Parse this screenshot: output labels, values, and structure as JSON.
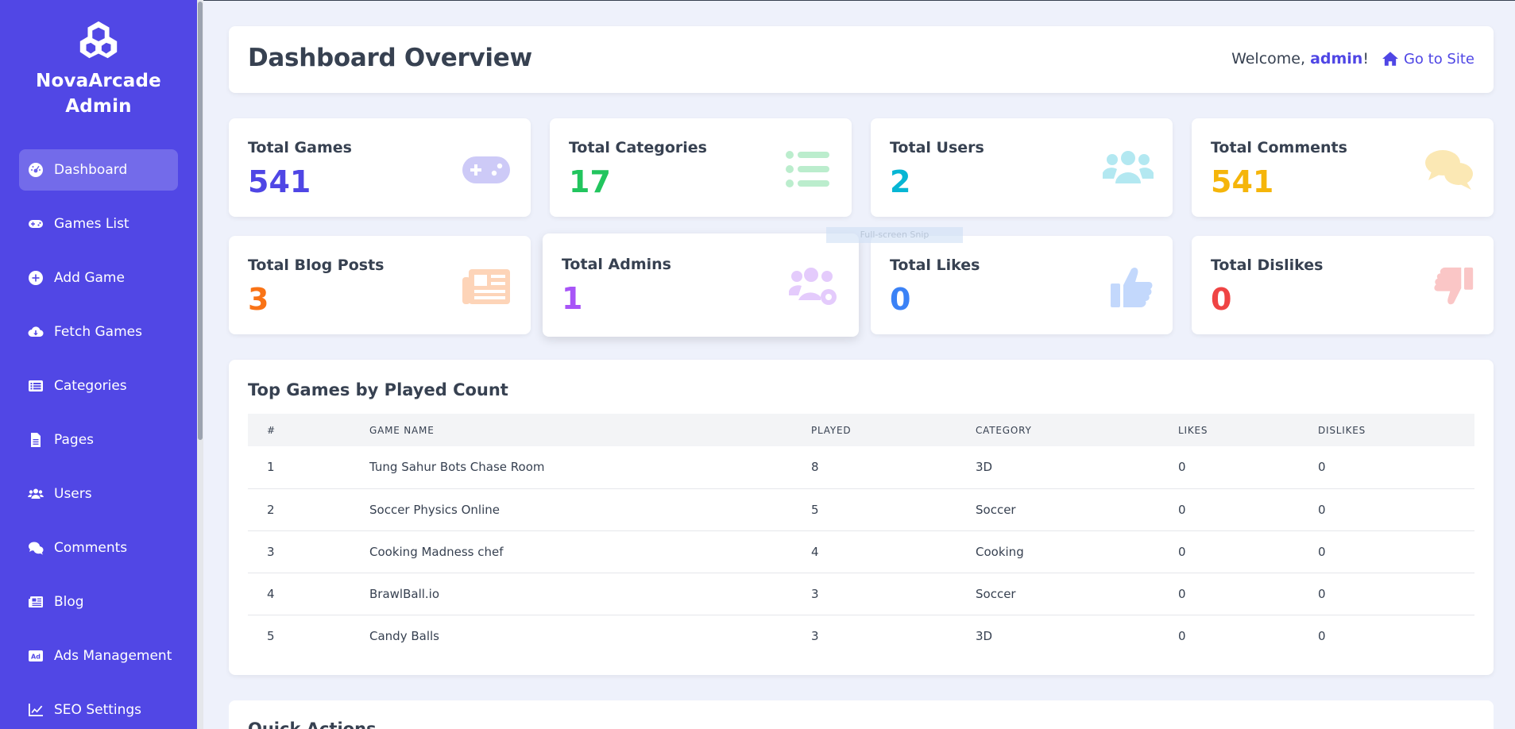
{
  "sidebar": {
    "brand_line1": "NovaArcade",
    "brand_line2": "Admin",
    "items": [
      {
        "label": "Dashboard",
        "icon": "gauge-icon",
        "active": true
      },
      {
        "label": "Games List",
        "icon": "gamepad-icon"
      },
      {
        "label": "Add Game",
        "icon": "plus-circle-icon"
      },
      {
        "label": "Fetch Games",
        "icon": "cloud-download-icon"
      },
      {
        "label": "Categories",
        "icon": "list-icon"
      },
      {
        "label": "Pages",
        "icon": "file-icon"
      },
      {
        "label": "Users",
        "icon": "users-icon"
      },
      {
        "label": "Comments",
        "icon": "comments-icon"
      },
      {
        "label": "Blog",
        "icon": "newspaper-icon"
      },
      {
        "label": "Ads Management",
        "icon": "ad-icon"
      },
      {
        "label": "SEO Settings",
        "icon": "chart-line-icon"
      }
    ]
  },
  "header": {
    "title": "Dashboard Overview",
    "welcome_prefix": "Welcome, ",
    "admin_name": "admin",
    "welcome_suffix": "!",
    "goto_label": "Go to Site"
  },
  "stats": [
    {
      "label": "Total Games",
      "value": "541",
      "color": "#4f46e5",
      "icon": "gamepad-icon"
    },
    {
      "label": "Total Categories",
      "value": "17",
      "color": "#22c55e",
      "icon": "list-icon"
    },
    {
      "label": "Total Users",
      "value": "2",
      "color": "#06b6d4",
      "icon": "users-icon"
    },
    {
      "label": "Total Comments",
      "value": "541",
      "color": "#f5b50a",
      "icon": "comments-icon"
    },
    {
      "label": "Total Blog Posts",
      "value": "3",
      "color": "#f97316",
      "icon": "newspaper-icon"
    },
    {
      "label": "Total Admins",
      "value": "1",
      "color": "#a855f7",
      "icon": "users-cog-icon"
    },
    {
      "label": "Total Likes",
      "value": "0",
      "color": "#3b82f6",
      "icon": "thumbs-up-icon"
    },
    {
      "label": "Total Dislikes",
      "value": "0",
      "color": "#ef4444",
      "icon": "thumbs-down-icon"
    }
  ],
  "top_games": {
    "title": "Top Games by Played Count",
    "columns": [
      "#",
      "GAME NAME",
      "PLAYED",
      "CATEGORY",
      "LIKES",
      "DISLIKES"
    ],
    "rows": [
      [
        "1",
        "Tung Sahur Bots Chase Room",
        "8",
        "3D",
        "0",
        "0"
      ],
      [
        "2",
        "Soccer Physics Online",
        "5",
        "Soccer",
        "0",
        "0"
      ],
      [
        "3",
        "Cooking Madness chef",
        "4",
        "Cooking",
        "0",
        "0"
      ],
      [
        "4",
        "BrawlBall.io",
        "3",
        "Soccer",
        "0",
        "0"
      ],
      [
        "5",
        "Candy Balls",
        "3",
        "3D",
        "0",
        "0"
      ]
    ]
  },
  "quick_actions": {
    "title": "Quick Actions"
  },
  "overlay": {
    "snip_tooltip": "Full-screen Snip"
  }
}
